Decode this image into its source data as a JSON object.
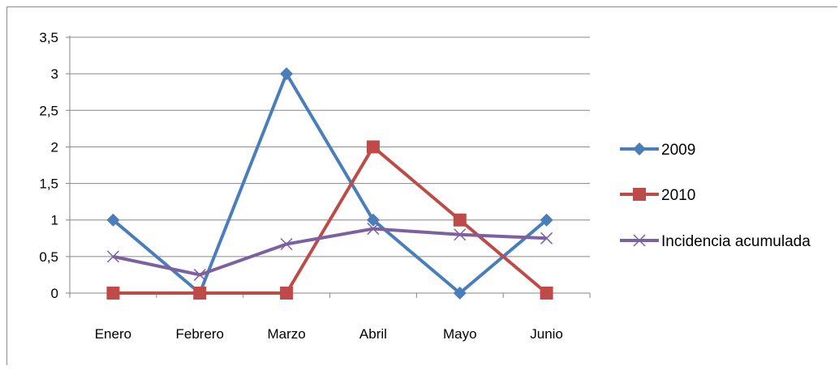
{
  "chart_data": {
    "type": "line",
    "categories": [
      "Enero",
      "Febrero",
      "Marzo",
      "Abril",
      "Mayo",
      "Junio"
    ],
    "series": [
      {
        "name": "2009",
        "values": [
          1,
          0,
          3,
          1,
          0,
          1
        ],
        "color": "#4a7ebb",
        "marker": "diamond"
      },
      {
        "name": "2010",
        "values": [
          0,
          0,
          0,
          2,
          1,
          0
        ],
        "color": "#be4b48",
        "marker": "square"
      },
      {
        "name": "Incidencia acumulada",
        "values": [
          0.5,
          0.25,
          0.67,
          0.88,
          0.8,
          0.75
        ],
        "color": "#7d60a0",
        "marker": "x"
      }
    ],
    "ylim": [
      0,
      3.5
    ],
    "y_ticks": [
      "0",
      "0,5",
      "1",
      "1,5",
      "2",
      "2,5",
      "3",
      "3,5"
    ],
    "grid": true,
    "legend_position": "right",
    "xlabel": "",
    "ylabel": "",
    "title": ""
  }
}
